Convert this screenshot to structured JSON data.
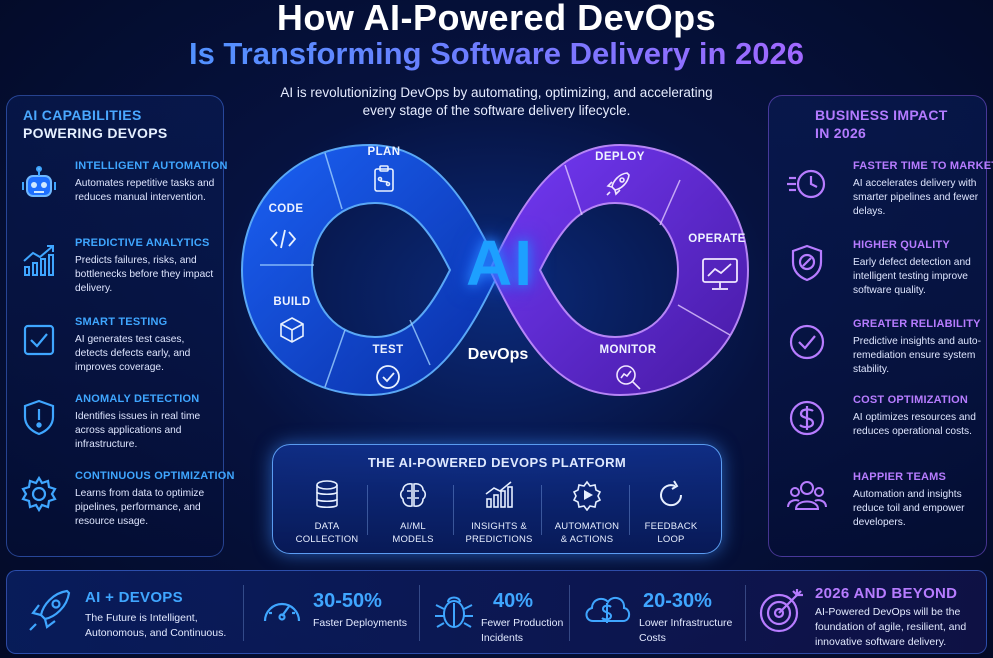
{
  "title": "How AI-Powered DevOps",
  "subtitle": "Is Transforming Software Delivery in 2026",
  "intro": {
    "line1": "AI is revolutionizing DevOps by automating, optimizing, and accelerating",
    "line2": "every stage of the software delivery lifecycle."
  },
  "left_panel": {
    "title_line1": "AI CAPABILITIES",
    "title_line2": "POWERING DEVOPS",
    "items": [
      {
        "icon": "robot-icon",
        "title": "INTELLIGENT AUTOMATION",
        "desc": "Automates repetitive tasks and reduces manual intervention."
      },
      {
        "icon": "chart-icon",
        "title": "PREDICTIVE ANALYTICS",
        "desc": "Predicts failures, risks, and bottlenecks before they impact delivery."
      },
      {
        "icon": "checkbox-icon",
        "title": "SMART TESTING",
        "desc": "AI generates test cases, detects defects early, and improves coverage."
      },
      {
        "icon": "shield-alert-icon",
        "title": "ANOMALY DETECTION",
        "desc": "Identifies issues in real time across applications and infrastructure."
      },
      {
        "icon": "gear-icon",
        "title": "CONTINUOUS OPTIMIZATION",
        "desc": "Learns from data to optimize pipelines, performance, and resource usage."
      }
    ]
  },
  "right_panel": {
    "title_line1": "BUSINESS IMPACT",
    "title_line2": "IN 2026",
    "items": [
      {
        "icon": "clock-speed-icon",
        "title": "FASTER TIME TO MARKET",
        "desc": "AI accelerates delivery with smarter pipelines and fewer delays."
      },
      {
        "icon": "shield-quality-icon",
        "title": "HIGHER QUALITY",
        "desc": "Early defect detection and intelligent testing improve software quality."
      },
      {
        "icon": "check-circle-icon",
        "title": "GREATER RELIABILITY",
        "desc": "Predictive insights and auto-remediation ensure system stability."
      },
      {
        "icon": "dollar-icon",
        "title": "COST OPTIMIZATION",
        "desc": "AI optimizes resources and reduces operational costs."
      },
      {
        "icon": "team-icon",
        "title": "HAPPIER TEAMS",
        "desc": "Automation and insights reduce toil and empower developers."
      }
    ]
  },
  "loop": {
    "center": "AI",
    "caption": "DevOps",
    "stages": [
      "PLAN",
      "CODE",
      "BUILD",
      "TEST",
      "DEPLOY",
      "OPERATE",
      "MONITOR"
    ]
  },
  "platform": {
    "title": "THE AI-POWERED DEVOPS PLATFORM",
    "items": [
      {
        "icon": "database-icon",
        "label": "DATA\nCOLLECTION"
      },
      {
        "icon": "brain-icon",
        "label": "AI/ML\nMODELS"
      },
      {
        "icon": "insights-icon",
        "label": "INSIGHTS &\nPREDICTIONS"
      },
      {
        "icon": "automation-icon",
        "label": "AUTOMATION\n& ACTIONS"
      },
      {
        "icon": "loop-icon",
        "label": "FEEDBACK\nLOOP"
      }
    ]
  },
  "bottom": {
    "lead_title": "AI + DEVOPS",
    "lead_desc_1": "The Future is Intelligent,",
    "lead_desc_2": "Autonomous, and Continuous.",
    "stats": [
      {
        "value": "30-50%",
        "label_1": "Faster Deployments",
        "label_2": ""
      },
      {
        "value": "40%",
        "label_1": "Fewer Production",
        "label_2": "Incidents"
      },
      {
        "value": "20-30%",
        "label_1": "Lower Infrastructure",
        "label_2": "Costs"
      }
    ],
    "end_title": "2026 AND BEYOND",
    "end_desc_1": "AI-Powered DevOps will be the",
    "end_desc_2": "foundation of agile, resilient, and",
    "end_desc_3": "innovative software delivery."
  },
  "colors": {
    "accent_blue": "#3fa6ff",
    "accent_purple": "#b77cff",
    "background": "#06123f"
  }
}
